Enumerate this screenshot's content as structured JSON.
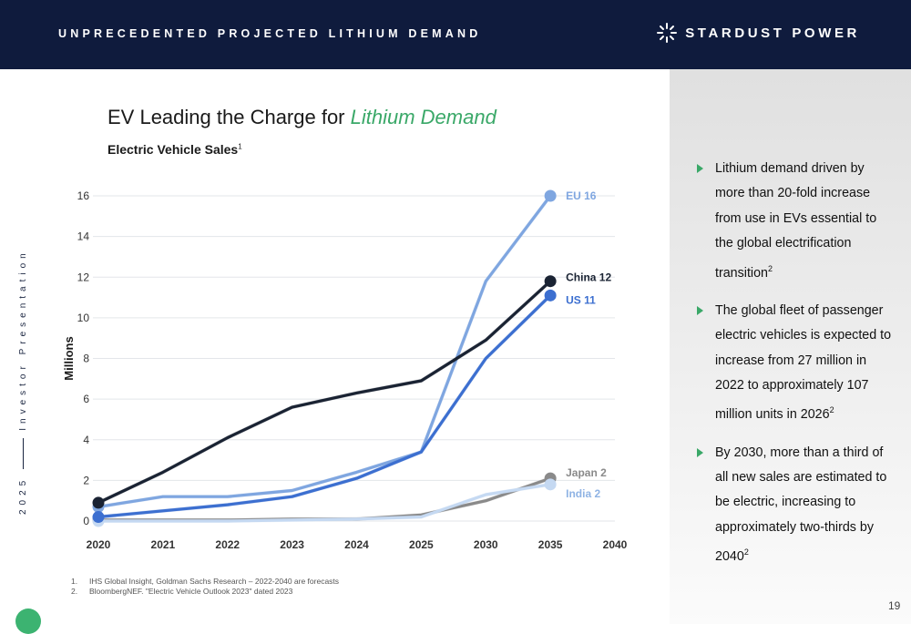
{
  "header": {
    "title": "UNPRECEDENTED PROJECTED LITHIUM DEMAND",
    "logo_text": "STARDUST POWER"
  },
  "side_label": {
    "year": "2025",
    "text": "Investor Presentation"
  },
  "slide": {
    "title_main": "EV Leading the Charge for ",
    "title_accent": "Lithium Demand",
    "chart_title": "Electric Vehicle Sales",
    "chart_title_note": "1"
  },
  "bullets": [
    {
      "text": "Lithium demand driven by more than 20-fold increase from use in EVs essential to the global electrification transition",
      "note": "2"
    },
    {
      "text": "The global fleet of passenger electric vehicles is expected to increase from 27 million in 2022 to approximately 107 million units in 2026",
      "note": "2"
    },
    {
      "text": "By 2030, more than a third of all new sales are estimated to be electric, increasing to approximately two-thirds by 2040",
      "note": "2"
    }
  ],
  "footnotes": [
    {
      "num": "1.",
      "text": "IHS Global Insight, Goldman Sachs Research – 2022-2040 are forecasts"
    },
    {
      "num": "2.",
      "text": "BloombergNEF. \"Electric Vehicle Outlook 2023\" dated 2023"
    }
  ],
  "page_number": "19",
  "colors": {
    "header_bg": "#0f1b3d",
    "accent_green": "#3aa868"
  },
  "chart_data": {
    "type": "line",
    "title": "Electric Vehicle Sales",
    "ylabel": "Millions",
    "xlabel": "",
    "categories": [
      "2020",
      "2021",
      "2022",
      "2023",
      "2024",
      "2025",
      "2030",
      "2035",
      "2040"
    ],
    "yticks": [
      0,
      2,
      4,
      6,
      8,
      10,
      12,
      14,
      16
    ],
    "ylim": [
      0,
      16
    ],
    "grid": true,
    "series": [
      {
        "name": "EU",
        "end_label": "EU 16",
        "color": "#7fa6e0",
        "values": [
          0.7,
          1.2,
          1.2,
          1.5,
          2.4,
          3.4,
          11.8,
          16,
          null
        ]
      },
      {
        "name": "Japan",
        "end_label": "Japan 2",
        "color": "#8a8a8a",
        "values": [
          0.05,
          0.05,
          0.05,
          0.1,
          0.1,
          0.3,
          1.0,
          2.1,
          null
        ]
      },
      {
        "name": "India",
        "end_label": "India 2",
        "color": "#c5d9f2",
        "values": [
          0.0,
          0.0,
          0.0,
          0.05,
          0.1,
          0.2,
          1.3,
          1.8,
          null
        ]
      },
      {
        "name": "China",
        "end_label": "China 12",
        "color": "#1a2333",
        "values": [
          0.9,
          2.4,
          4.1,
          5.6,
          6.3,
          6.9,
          8.9,
          11.8,
          null
        ]
      },
      {
        "name": "US",
        "end_label": "US 11",
        "color": "#3c6fd0",
        "values": [
          0.2,
          0.5,
          0.8,
          1.2,
          2.1,
          3.4,
          8.0,
          11.1,
          null
        ]
      }
    ]
  }
}
